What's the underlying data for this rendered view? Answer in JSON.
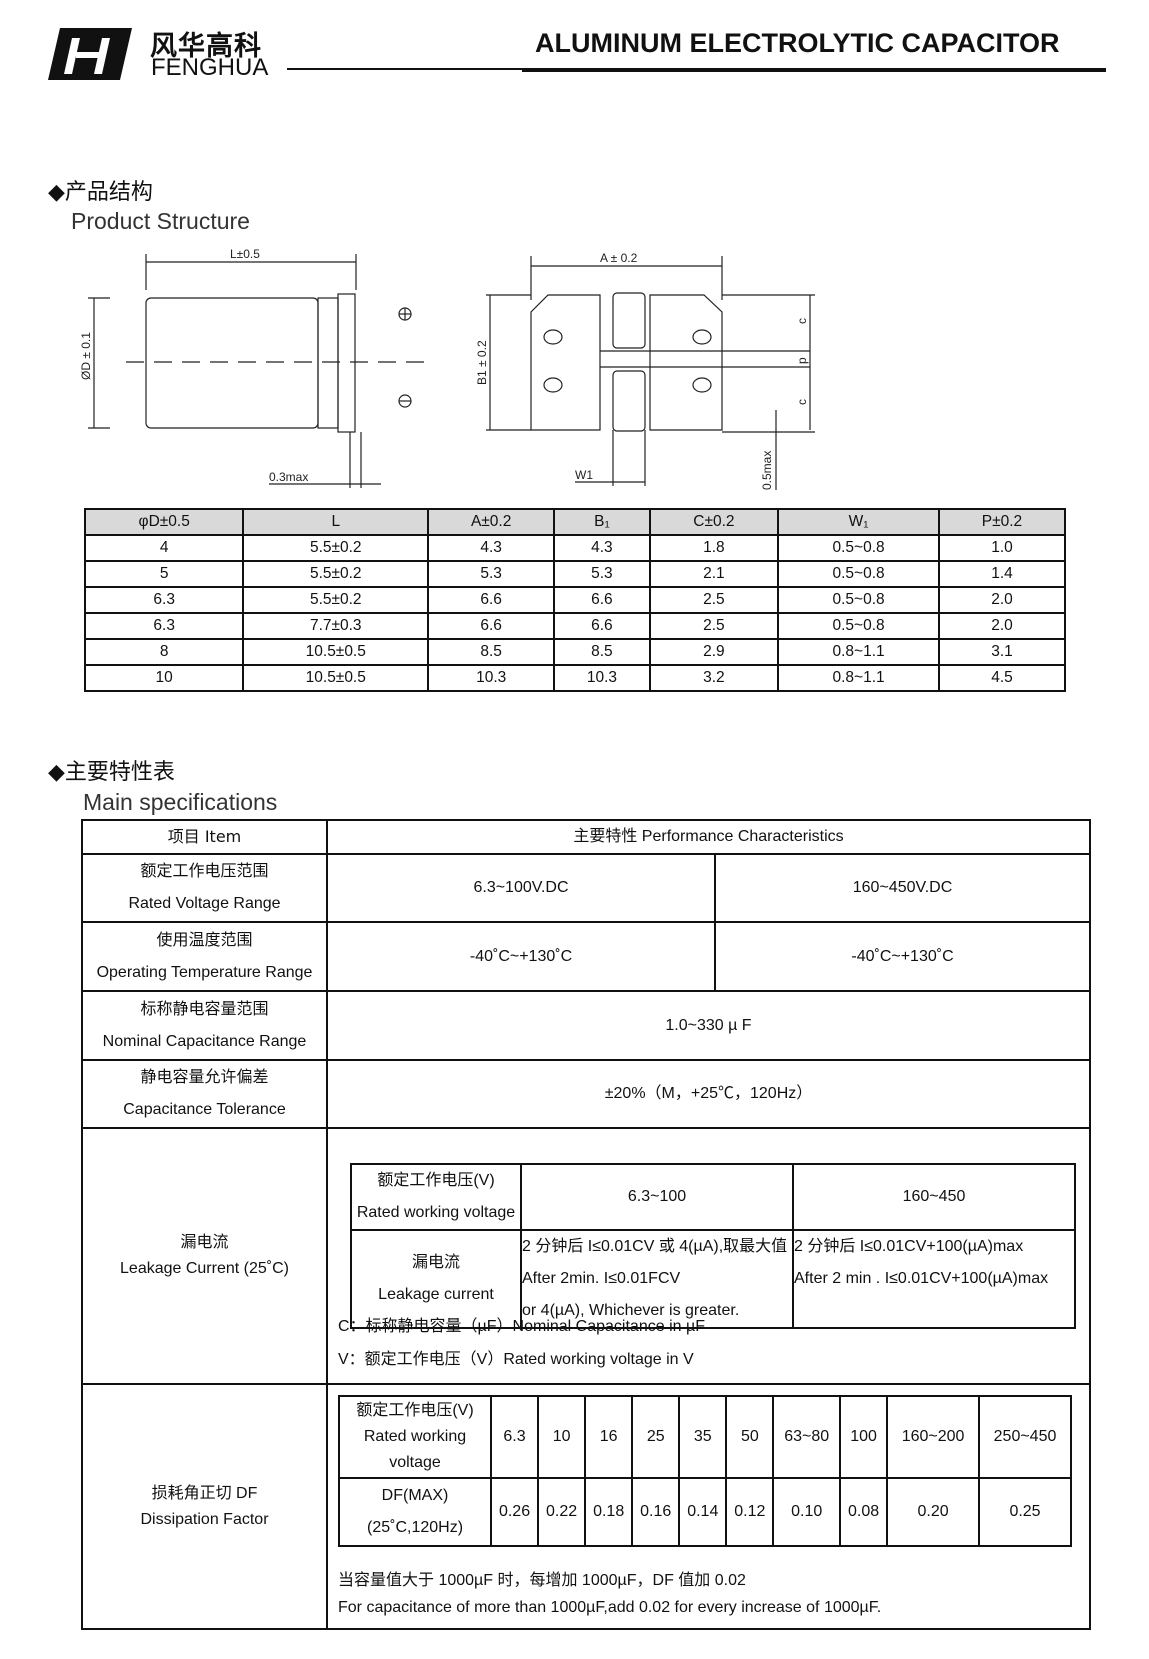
{
  "header": {
    "brand_cn": "风华高科",
    "brand_en": "FENGHUA",
    "title": "ALUMINUM ELECTROLYTIC CAPACITOR"
  },
  "structure": {
    "title_cn": "◆产品结构",
    "title_en": "Product Structure",
    "labels": {
      "L": "L±0.5",
      "D": "ØD ± 0.1",
      "t03": "0.3max",
      "A": "A ± 0.2",
      "B1": "B1 ± 0.2",
      "c": "c",
      "p": "p",
      "W1": "W1",
      "t05": "0.5max"
    }
  },
  "dimensions": {
    "headers": [
      "φD±0.5",
      "L",
      "A±0.2",
      "B₁",
      "C±0.2",
      "W₁",
      "P±0.2"
    ],
    "rows": [
      [
        "4",
        "5.5±0.2",
        "4.3",
        "4.3",
        "1.8",
        "0.5~0.8",
        "1.0"
      ],
      [
        "5",
        "5.5±0.2",
        "5.3",
        "5.3",
        "2.1",
        "0.5~0.8",
        "1.4"
      ],
      [
        "6.3",
        "5.5±0.2",
        "6.6",
        "6.6",
        "2.5",
        "0.5~0.8",
        "2.0"
      ],
      [
        "6.3",
        "7.7±0.3",
        "6.6",
        "6.6",
        "2.5",
        "0.5~0.8",
        "2.0"
      ],
      [
        "8",
        "10.5±0.5",
        "8.5",
        "8.5",
        "2.9",
        "0.8~1.1",
        "3.1"
      ],
      [
        "10",
        "10.5±0.5",
        "10.3",
        "10.3",
        "3.2",
        "0.8~1.1",
        "4.5"
      ]
    ]
  },
  "specs": {
    "title_cn": "◆主要特性表",
    "title_en": "Main specifications",
    "head_item": "项目 Item",
    "head_perf": "主要特性 Performance Characteristics",
    "voltage": {
      "cn": "额定工作电压范围",
      "en": "Rated Voltage Range",
      "v1": "6.3~100V.DC",
      "v2": "160~450V.DC"
    },
    "temp": {
      "cn": "使用温度范围",
      "en": "Operating Temperature Range",
      "v1": "-40˚C~+130˚C",
      "v2": "-40˚C~+130˚C"
    },
    "cap": {
      "cn": "标称静电容量范围",
      "en": "Nominal Capacitance Range",
      "v": "1.0~330 µ F"
    },
    "tol": {
      "cn": "静电容量允许偏差",
      "en": "Capacitance Tolerance",
      "v": "±20%（M，+25℃，120Hz）"
    },
    "leak": {
      "cn": "漏电流",
      "en": "Leakage Current (25˚C)",
      "rv_cn": "额定工作电压(V)",
      "rv_en": "Rated working voltage",
      "r1": "6.3~100",
      "r2": "160~450",
      "lc_cn": "漏电流",
      "lc_en": "Leakage current",
      "c1": [
        "2 分钟后 I≤0.01CV 或 4(µA),取最大值",
        "After 2min. I≤0.01FCV",
        "or 4(µA), Whichever is greater."
      ],
      "c2": [
        "2 分钟后 I≤0.01CV+100(µA)max",
        "After 2 min . I≤0.01CV+100(µA)max"
      ],
      "note_c": "C：标称静电容量（µF）Nominal Capacitance in µF",
      "note_v": "V：额定工作电压（V）Rated working voltage in V"
    },
    "df": {
      "cn": "损耗角正切 DF",
      "en": "Dissipation Factor",
      "rv": [
        "额定工作电压(V)",
        "Rated working",
        "voltage"
      ],
      "dfl": [
        "DF(MAX)",
        "(25˚C,120Hz)"
      ],
      "voltages": [
        "6.3",
        "10",
        "16",
        "25",
        "35",
        "50",
        "63~80",
        "100",
        "160~200",
        "250~450"
      ],
      "values": [
        "0.26",
        "0.22",
        "0.18",
        "0.16",
        "0.14",
        "0.12",
        "0.10",
        "0.08",
        "0.20",
        "0.25"
      ],
      "note_cn": "当容量值大于 1000µF 时，每增加 1000µF，DF 值加 0.02",
      "note_en": "For capacitance of more than 1000µF,add 0.02 for every increase of 1000µF."
    }
  }
}
